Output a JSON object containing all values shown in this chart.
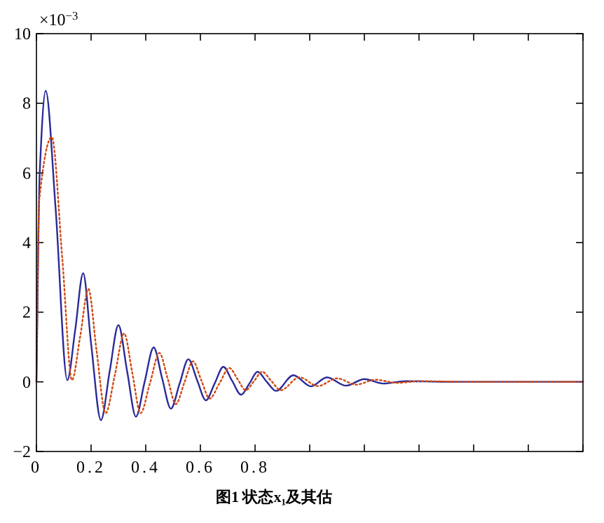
{
  "chart_data": {
    "type": "line",
    "xlim": [
      0,
      2
    ],
    "ylim": [
      -2,
      10
    ],
    "xticks": [
      0,
      0.2,
      0.4,
      0.6,
      0.8,
      {
        "value": 1,
        "label": null
      },
      {
        "value": 1.2,
        "label": null
      },
      {
        "value": 1.4,
        "label": null
      },
      {
        "value": 1.6,
        "label": null
      },
      {
        "value": 1.8,
        "label": null
      },
      {
        "value": 2,
        "label": null
      }
    ],
    "yticks": [
      {
        "value": -2,
        "label": "−2"
      },
      0,
      2,
      4,
      6,
      8,
      10
    ],
    "annotations": [
      "×10$^{−3}$",
      "图1   状态x₁及其估"
    ],
    "series": [
      {
        "color": "#2a2a9a",
        "line_style": "solid",
        "x": [
          0,
          0.012,
          0.034,
          0.07,
          0.113,
          0.142,
          0.171,
          0.2,
          0.236,
          0.268,
          0.3,
          0.332,
          0.364,
          0.396,
          0.429,
          0.46,
          0.492,
          0.524,
          0.556,
          0.588,
          0.62,
          0.652,
          0.684,
          0.716,
          0.749,
          0.78,
          0.809,
          0.843,
          0.877,
          0.94,
          1.005,
          1.063,
          1.133,
          1.2,
          1.27,
          1.35,
          1.5,
          1.7,
          2.0
        ],
        "values": [
          0,
          6,
          8.36,
          5,
          0.05,
          1.5,
          3.12,
          1.1,
          -1.1,
          0.3,
          1.63,
          0.3,
          -1.0,
          0,
          0.99,
          0.1,
          -0.77,
          -0.05,
          0.65,
          0.05,
          -0.53,
          -0.05,
          0.43,
          0.03,
          -0.37,
          -0.04,
          0.29,
          0,
          -0.26,
          0.19,
          -0.13,
          0.13,
          -0.11,
          0.08,
          -0.05,
          0.02,
          0,
          0,
          0
        ]
      },
      {
        "color": "#d04a10",
        "line_style": "dotted",
        "x": [
          0,
          0.01,
          0.056,
          0.095,
          0.13,
          0.16,
          0.19,
          0.22,
          0.253,
          0.287,
          0.321,
          0.351,
          0.381,
          0.415,
          0.45,
          0.48,
          0.51,
          0.541,
          0.573,
          0.603,
          0.634,
          0.67,
          0.706,
          0.736,
          0.766,
          0.796,
          0.826,
          0.86,
          0.894,
          0.962,
          1.03,
          1.1,
          1.17,
          1.24,
          1.32,
          1.4,
          1.6,
          2.0
        ],
        "values": [
          0,
          5.2,
          7.03,
          3.5,
          0.05,
          1.3,
          2.67,
          0.9,
          -0.9,
          0.2,
          1.39,
          0.25,
          -0.9,
          -0.05,
          0.83,
          0.1,
          -0.64,
          -0.03,
          0.59,
          0.05,
          -0.48,
          -0.04,
          0.4,
          0.08,
          -0.24,
          0.02,
          0.29,
          0.02,
          -0.24,
          0.13,
          -0.12,
          0.1,
          -0.08,
          0.06,
          -0.03,
          0.02,
          0,
          0
        ]
      }
    ]
  }
}
